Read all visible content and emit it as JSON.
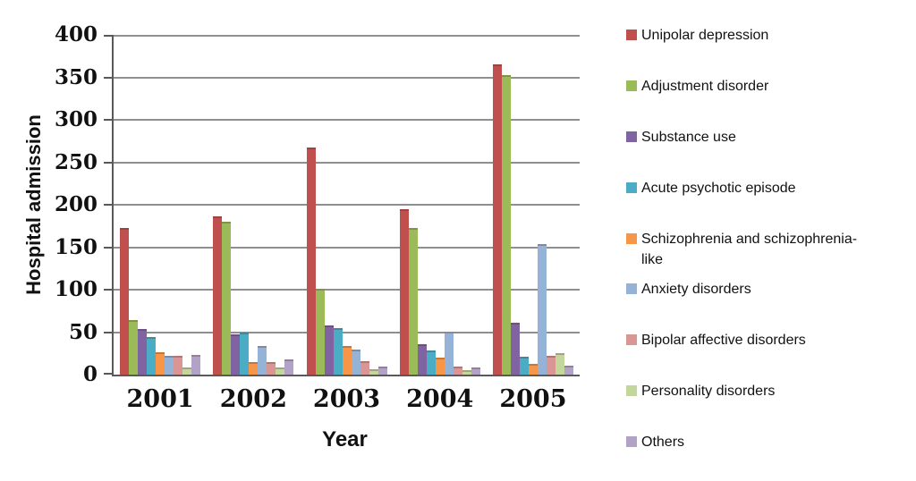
{
  "chart_data": {
    "type": "bar",
    "title": "",
    "xlabel": "Year",
    "ylabel": "Hospital admission",
    "ylim": [
      0,
      400
    ],
    "y_ticks": [
      400,
      350,
      300,
      250,
      200,
      150,
      100,
      50,
      0
    ],
    "grid": true,
    "legend_position": "right",
    "categories": [
      "2001",
      "2002",
      "2003",
      "2004",
      "2005"
    ],
    "series": [
      {
        "name": "Unipolar depression",
        "color": "#C0504D",
        "values": [
          173,
          186,
          267,
          195,
          365
        ]
      },
      {
        "name": "Adjustment disorder",
        "color": "#9BBB59",
        "values": [
          64,
          180,
          101,
          173,
          353
        ]
      },
      {
        "name": "Substance use",
        "color": "#8064A2",
        "values": [
          54,
          47,
          58,
          36,
          61
        ]
      },
      {
        "name": "Acute psychotic episode",
        "color": "#4BACC6",
        "values": [
          44,
          50,
          55,
          28,
          21
        ]
      },
      {
        "name": "Schizophrenia and schizophrenia-like",
        "color": "#F79646",
        "values": [
          26,
          15,
          34,
          20,
          13
        ]
      },
      {
        "name": "Anxiety disorders",
        "color": "#95B3D7",
        "values": [
          22,
          34,
          30,
          51,
          154
        ]
      },
      {
        "name": "Bipolar affective disorders",
        "color": "#D99694",
        "values": [
          22,
          15,
          16,
          10,
          22
        ]
      },
      {
        "name": "Personality disorders",
        "color": "#C3D69B",
        "values": [
          8,
          8,
          6,
          5,
          25
        ]
      },
      {
        "name": "Others",
        "color": "#B3A2C7",
        "values": [
          23,
          18,
          10,
          8,
          11
        ]
      }
    ],
    "axis_color": "#595959",
    "gridline_color": "#8F8F8F"
  }
}
